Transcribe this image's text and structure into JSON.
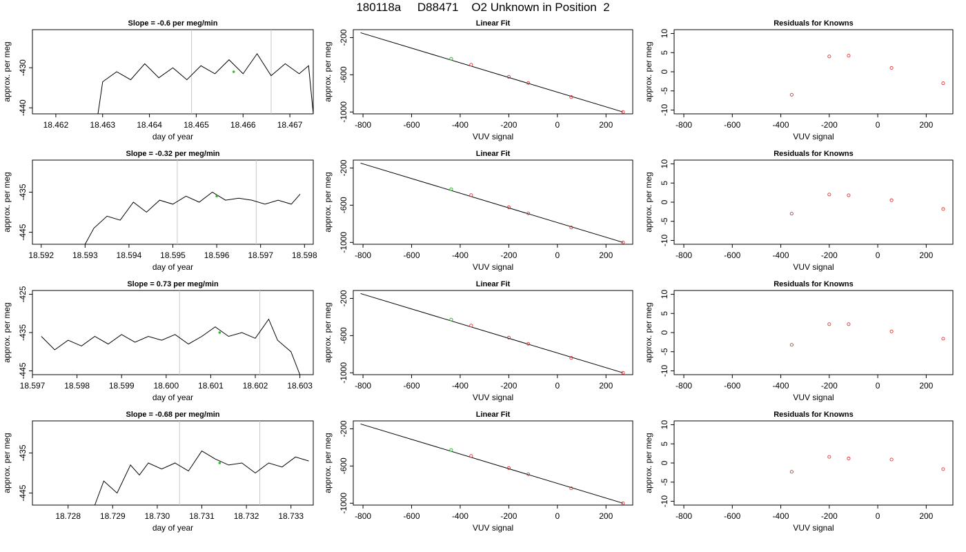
{
  "title": "180118a     D88471    O2 Unknown in Position  2",
  "chart_data": [
    {
      "type": "line",
      "title": "Slope =  -0.6  per meg/min",
      "xlabel": "day of year",
      "ylabel": "approx. per meg",
      "xlim": [
        18.4615,
        18.4675
      ],
      "ylim": [
        -441.5,
        -420.5
      ],
      "xticks": [
        "18.462",
        "18.463",
        "18.464",
        "18.465",
        "18.466",
        "18.467"
      ],
      "yticks": [
        "-440",
        "-430"
      ],
      "vlines": [
        18.4649,
        18.4666
      ],
      "x": [
        18.4629,
        18.463,
        18.4633,
        18.4636,
        18.4639,
        18.4642,
        18.4645,
        18.4648,
        18.4651,
        18.4654,
        18.4657,
        18.466,
        18.4663,
        18.4666,
        18.4669,
        18.4672,
        18.4674,
        18.4675
      ],
      "y": [
        -441.5,
        -433.5,
        -431.0,
        -433.0,
        -429.0,
        -432.5,
        -430.0,
        -433.0,
        -429.5,
        -431.5,
        -428.0,
        -431.5,
        -426.5,
        -432.0,
        -429.0,
        -431.5,
        -429.5,
        -441.5
      ],
      "marker": {
        "x": 18.4658,
        "y": -431.0
      }
    },
    {
      "type": "line",
      "title": "Slope =  -0.32  per meg/min",
      "xlabel": "day of year",
      "ylabel": "approx. per meg",
      "xlim": [
        18.5918,
        18.5982
      ],
      "ylim": [
        -448,
        -427
      ],
      "xticks": [
        "18.592",
        "18.593",
        "18.594",
        "18.595",
        "18.596",
        "18.597",
        "18.598"
      ],
      "yticks": [
        "-445",
        "-435"
      ],
      "vlines": [
        18.5951,
        18.5969
      ],
      "x": [
        18.593,
        18.5932,
        18.5935,
        18.5938,
        18.5941,
        18.5944,
        18.5947,
        18.595,
        18.5953,
        18.5956,
        18.5959,
        18.5962,
        18.5965,
        18.5968,
        18.5971,
        18.5974,
        18.5977,
        18.5979
      ],
      "y": [
        -448.0,
        -444.0,
        -441.0,
        -442.0,
        -437.5,
        -440.0,
        -437.0,
        -438.0,
        -436.0,
        -437.5,
        -435.0,
        -437.0,
        -436.5,
        -437.0,
        -438.0,
        -437.0,
        -438.0,
        -435.5
      ],
      "marker": {
        "x": 18.596,
        "y": -436.0
      }
    },
    {
      "type": "line",
      "title": "Slope =  0.73  per meg/min",
      "xlabel": "day of year",
      "ylabel": "approx. per meg",
      "xlim": [
        18.597,
        18.6033
      ],
      "ylim": [
        -446,
        -424
      ],
      "xticks": [
        "18.597",
        "18.598",
        "18.599",
        "18.600",
        "18.601",
        "18.602",
        "18.603"
      ],
      "yticks": [
        "-445",
        "-435",
        "-425"
      ],
      "vlines": [
        18.6003,
        18.6021
      ],
      "x": [
        18.5972,
        18.5975,
        18.5978,
        18.5981,
        18.5984,
        18.5987,
        18.599,
        18.5993,
        18.5996,
        18.5999,
        18.6002,
        18.6005,
        18.6008,
        18.6011,
        18.6014,
        18.6017,
        18.602,
        18.6023,
        18.6025,
        18.6028,
        18.603
      ],
      "y": [
        -436.0,
        -439.5,
        -437.0,
        -438.5,
        -436.0,
        -438.0,
        -435.5,
        -437.5,
        -436.0,
        -437.0,
        -435.5,
        -438.0,
        -436.0,
        -433.5,
        -436.0,
        -435.0,
        -436.5,
        -431.5,
        -437.0,
        -440.0,
        -446.0
      ],
      "marker": {
        "x": 18.6012,
        "y": -435.0
      }
    },
    {
      "type": "line",
      "title": "Slope =  -0.68  per meg/min",
      "xlabel": "day of year",
      "ylabel": "approx. per meg",
      "xlim": [
        18.7272,
        18.7335
      ],
      "ylim": [
        -448,
        -427
      ],
      "xticks": [
        "18.728",
        "18.729",
        "18.730",
        "18.731",
        "18.732",
        "18.733"
      ],
      "yticks": [
        "-445",
        "-435"
      ],
      "vlines": [
        18.7305,
        18.7323
      ],
      "x": [
        18.7286,
        18.7288,
        18.7291,
        18.7294,
        18.7296,
        18.7298,
        18.7301,
        18.7304,
        18.7307,
        18.731,
        18.7313,
        18.7316,
        18.7319,
        18.7322,
        18.7325,
        18.7328,
        18.7331,
        18.7334
      ],
      "y": [
        -448.0,
        -442.0,
        -445.0,
        -438.0,
        -440.5,
        -437.5,
        -439.0,
        -437.5,
        -439.5,
        -434.5,
        -436.5,
        -438.0,
        -437.5,
        -440.0,
        -437.5,
        -438.5,
        -436.0,
        -437.0
      ],
      "marker": {
        "x": 18.7314,
        "y": -437.5
      }
    },
    {
      "type": "scatter",
      "title": "Linear Fit",
      "xlabel": "VUV signal",
      "ylabel": "approx. per meg",
      "xlim": [
        -840,
        310
      ],
      "ylim": [
        -1020,
        -115
      ],
      "xticks": [
        -800,
        -600,
        -400,
        -200,
        0,
        200
      ],
      "yticks": [
        -200,
        -600,
        -1000
      ],
      "line": {
        "x": [
          -810,
          270
        ],
        "y": [
          -148,
          -1000
        ]
      },
      "points": [
        {
          "x": -355,
          "y": -492
        },
        {
          "x": -200,
          "y": -622
        },
        {
          "x": -120,
          "y": -688
        },
        {
          "x": 57,
          "y": -840
        },
        {
          "x": 270,
          "y": -1000
        }
      ],
      "unknown": {
        "x": -437,
        "y": -428
      }
    },
    {
      "type": "scatter",
      "title": "Linear Fit",
      "xlabel": "VUV signal",
      "ylabel": "approx. per meg",
      "xlim": [
        -840,
        310
      ],
      "ylim": [
        -1020,
        -115
      ],
      "xticks": [
        -800,
        -600,
        -400,
        -200,
        0,
        200
      ],
      "yticks": [
        -200,
        -600,
        -1000
      ],
      "line": {
        "x": [
          -810,
          270
        ],
        "y": [
          -148,
          -1000
        ]
      },
      "points": [
        {
          "x": -355,
          "y": -492
        },
        {
          "x": -200,
          "y": -622
        },
        {
          "x": -120,
          "y": -688
        },
        {
          "x": 57,
          "y": -840
        },
        {
          "x": 270,
          "y": -1000
        }
      ],
      "unknown": {
        "x": -437,
        "y": -428
      }
    },
    {
      "type": "scatter",
      "title": "Linear Fit",
      "xlabel": "VUV signal",
      "ylabel": "approx. per meg",
      "xlim": [
        -840,
        310
      ],
      "ylim": [
        -1020,
        -115
      ],
      "xticks": [
        -800,
        -600,
        -400,
        -200,
        0,
        200
      ],
      "yticks": [
        -200,
        -600,
        -1000
      ],
      "line": {
        "x": [
          -810,
          270
        ],
        "y": [
          -148,
          -1000
        ]
      },
      "points": [
        {
          "x": -355,
          "y": -492
        },
        {
          "x": -200,
          "y": -622
        },
        {
          "x": -120,
          "y": -688
        },
        {
          "x": 57,
          "y": -840
        },
        {
          "x": 270,
          "y": -1000
        }
      ],
      "unknown": {
        "x": -437,
        "y": -428
      }
    },
    {
      "type": "scatter",
      "title": "Linear Fit",
      "xlabel": "VUV signal",
      "ylabel": "approx. per meg",
      "xlim": [
        -840,
        310
      ],
      "ylim": [
        -1020,
        -115
      ],
      "xticks": [
        -800,
        -600,
        -400,
        -200,
        0,
        200
      ],
      "yticks": [
        -200,
        -600,
        -1000
      ],
      "line": {
        "x": [
          -810,
          270
        ],
        "y": [
          -148,
          -1000
        ]
      },
      "points": [
        {
          "x": -355,
          "y": -492
        },
        {
          "x": -200,
          "y": -622
        },
        {
          "x": -120,
          "y": -688
        },
        {
          "x": 57,
          "y": -840
        },
        {
          "x": 270,
          "y": -1000
        }
      ],
      "unknown": {
        "x": -437,
        "y": -428
      }
    },
    {
      "type": "scatter",
      "title": "Residuals for Knowns",
      "xlabel": "VUV signal",
      "ylabel": "approx. per meg",
      "xlim": [
        -840,
        310
      ],
      "ylim": [
        -11,
        11
      ],
      "xticks": [
        -800,
        -600,
        -400,
        -200,
        0,
        200
      ],
      "yticks": [
        -10,
        -5,
        0,
        5,
        10
      ],
      "points": [
        {
          "x": -355,
          "y": -6.0
        },
        {
          "x": -200,
          "y": 4.0
        },
        {
          "x": -120,
          "y": 4.2
        },
        {
          "x": 57,
          "y": 1.0
        },
        {
          "x": 270,
          "y": -3.0
        }
      ]
    },
    {
      "type": "scatter",
      "title": "Residuals for Knowns",
      "xlabel": "VUV signal",
      "ylabel": "approx. per meg",
      "xlim": [
        -840,
        310
      ],
      "ylim": [
        -11,
        11
      ],
      "xticks": [
        -800,
        -600,
        -400,
        -200,
        0,
        200
      ],
      "yticks": [
        -10,
        -5,
        0,
        5,
        10
      ],
      "points": [
        {
          "x": -355,
          "y": -3.0
        },
        {
          "x": -200,
          "y": 2.0
        },
        {
          "x": -120,
          "y": 1.8
        },
        {
          "x": 57,
          "y": 0.5
        },
        {
          "x": 270,
          "y": -1.8
        }
      ]
    },
    {
      "type": "scatter",
      "title": "Residuals for Knowns",
      "xlabel": "VUV signal",
      "ylabel": "approx. per meg",
      "xlim": [
        -840,
        310
      ],
      "ylim": [
        -11,
        11
      ],
      "xticks": [
        -800,
        -600,
        -400,
        -200,
        0,
        200
      ],
      "yticks": [
        -10,
        -5,
        0,
        5,
        10
      ],
      "points": [
        {
          "x": -355,
          "y": -3.2
        },
        {
          "x": -200,
          "y": 2.2
        },
        {
          "x": -120,
          "y": 2.2
        },
        {
          "x": 57,
          "y": 0.3
        },
        {
          "x": 270,
          "y": -1.6
        }
      ]
    },
    {
      "type": "scatter",
      "title": "Residuals for Knowns",
      "xlabel": "VUV signal",
      "ylabel": "approx. per meg",
      "xlim": [
        -840,
        310
      ],
      "ylim": [
        -11,
        11
      ],
      "xticks": [
        -800,
        -600,
        -400,
        -200,
        0,
        200
      ],
      "yticks": [
        -10,
        -5,
        0,
        5,
        10
      ],
      "points": [
        {
          "x": -355,
          "y": -2.3
        },
        {
          "x": -200,
          "y": 1.6
        },
        {
          "x": -120,
          "y": 1.2
        },
        {
          "x": 57,
          "y": 0.9
        },
        {
          "x": 270,
          "y": -1.6
        }
      ]
    }
  ]
}
